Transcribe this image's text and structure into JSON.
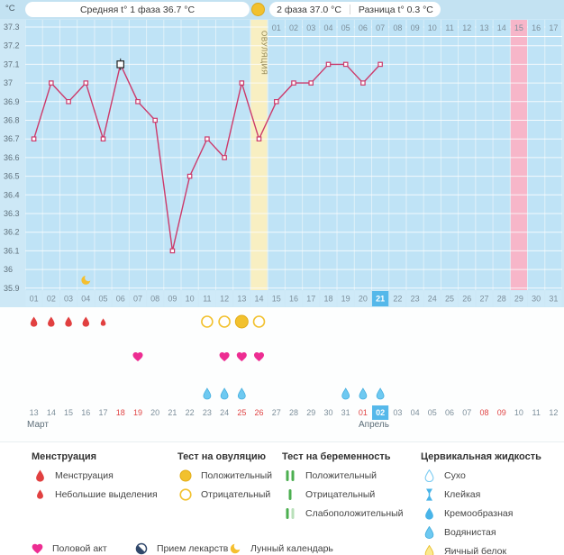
{
  "header": {
    "y_unit": "°C",
    "phase1_label": "Средняя t° 1 фаза 36.7 °C",
    "phase2_label": "2 фаза 37.0 °C",
    "diff_label": "Разница t° 0.3 °C"
  },
  "chart_data": {
    "type": "line",
    "ylabel": "°C",
    "ylim": [
      35.9,
      37.3
    ],
    "yticks": [
      "37.3",
      "37.2",
      "37.1",
      "37",
      "36.9",
      "36.8",
      "36.7",
      "36.6",
      "36.5",
      "36.4",
      "36.3",
      "36.2",
      "36.1",
      "36",
      "35.9"
    ],
    "cycle_days": [
      "01",
      "02",
      "03",
      "04",
      "05",
      "06",
      "07",
      "08",
      "09",
      "10",
      "11",
      "12",
      "13",
      "14",
      "15",
      "16",
      "17",
      "18",
      "19",
      "20",
      "21",
      "22",
      "23",
      "24",
      "25",
      "26",
      "27",
      "28",
      "29",
      "30",
      "31"
    ],
    "temps_by_day": [
      36.7,
      37.0,
      36.9,
      37.0,
      36.7,
      37.1,
      36.9,
      36.8,
      36.1,
      36.5,
      36.7,
      36.6,
      37.0,
      36.7,
      36.9,
      37.0,
      37.0,
      37.1,
      37.1,
      37.0,
      37.1,
      null,
      null,
      null,
      null,
      null,
      null,
      null,
      null,
      null,
      null
    ],
    "ovulation": {
      "day": 14,
      "label": "ОВУЛЯЦИЯ"
    },
    "expected_period_day": 29,
    "dpo_labels": [
      "01",
      "02",
      "03",
      "04",
      "05",
      "06",
      "07",
      "08",
      "09",
      "10",
      "11",
      "12",
      "13",
      "14",
      "15",
      "16",
      "17"
    ],
    "selected_point_day": 6,
    "today_cycle_day": 21
  },
  "events": {
    "menstruation_days": [
      1,
      2,
      3,
      4
    ],
    "spotting_days": [
      5
    ],
    "ovulation_test_negative_days": [
      11,
      12,
      14
    ],
    "ovulation_test_positive_days": [
      13
    ],
    "intercourse_days": [
      7,
      12,
      13,
      14
    ],
    "watery_fluid_days": [
      11,
      12,
      13,
      19,
      20,
      21
    ],
    "moon_calendar_days": [
      4
    ]
  },
  "calendar": {
    "month1_label": "Март",
    "month2_label": "Апрель",
    "date_labels": [
      "13",
      "14",
      "15",
      "16",
      "17",
      "18",
      "19",
      "20",
      "21",
      "22",
      "23",
      "24",
      "25",
      "26",
      "27",
      "28",
      "29",
      "30",
      "31",
      "01",
      "02",
      "03",
      "04",
      "05",
      "06",
      "07",
      "08",
      "09",
      "10",
      "11",
      "12"
    ],
    "weekend_indices": [
      5,
      6,
      12,
      13,
      19,
      26,
      27
    ],
    "today_index": 20
  },
  "legend": {
    "columns": [
      {
        "title": "Менструация",
        "items": [
          {
            "icon": "drop-red",
            "label": "Менструация"
          },
          {
            "icon": "drop-red-small",
            "label": "Небольшие выделения"
          }
        ]
      },
      {
        "title": "Тест на овуляцию",
        "items": [
          {
            "icon": "circle-filled-yellow",
            "label": "Положительный"
          },
          {
            "icon": "circle-outline-yellow",
            "label": "Отрицательный"
          }
        ]
      },
      {
        "title": "Тест на беременность",
        "items": [
          {
            "icon": "test-two-bars",
            "label": "Положительный"
          },
          {
            "icon": "test-one-bar",
            "label": "Отрицательный"
          },
          {
            "icon": "test-faint-bar",
            "label": "Слабоположительный"
          }
        ]
      },
      {
        "title": "Цервикальная жидкость",
        "items": [
          {
            "icon": "drop-outline",
            "label": "Сухо"
          },
          {
            "icon": "sticky",
            "label": "Клейкая"
          },
          {
            "icon": "drop-creamy",
            "label": "Кремообразная"
          },
          {
            "icon": "drop-watery",
            "label": "Водянистая"
          },
          {
            "icon": "drop-eggwhite",
            "label": "Яичный белок"
          }
        ]
      }
    ],
    "extra_items": [
      {
        "icon": "heart",
        "label": "Половой акт"
      },
      {
        "icon": "pill",
        "label": "Прием лекарств"
      },
      {
        "icon": "moon",
        "label": "Лунный календарь"
      }
    ]
  },
  "colors": {
    "header_strip": "#c3e2f2",
    "bg": "#cde8f6",
    "plot_gap": "#dff0f9",
    "column": "#bfe3f6",
    "ovulation_column": "#f8efc2",
    "expected_period_column": "#f7b6c9",
    "grid": "#ffffff",
    "line": "#cc3a6b",
    "today": "#55b8ea",
    "day_cell": "#cfeaf8",
    "text_gray": "#7d8f9b",
    "axis_text": "#5f707b",
    "date_red": "#e04545",
    "heart": "#ed2d92",
    "menstruation": "#e14040",
    "watery": "#6ec9f1",
    "watery_stroke": "#45aede",
    "yellow": "#f2c12e",
    "yellow_dark": "#e2ac17",
    "green": "#4caf50",
    "green_light": "#b9e0ba",
    "moon": "#f5bf2e",
    "pill_navy": "#31486b",
    "ovu_label": "#8b7f4d"
  }
}
